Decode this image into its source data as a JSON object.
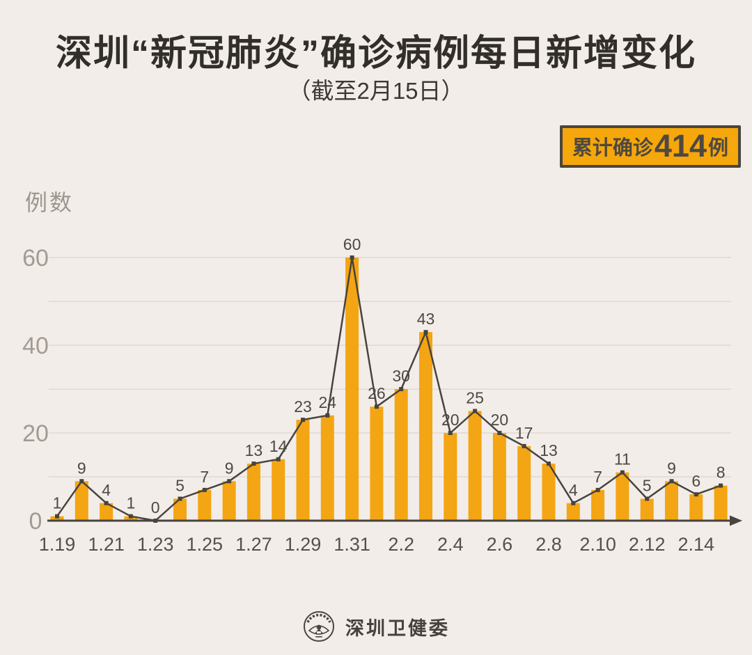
{
  "header": {
    "title": "深圳“新冠肺炎”确诊病例每日新增变化",
    "subtitle": "（截至2月15日）"
  },
  "badge": {
    "prefix": "累计确诊",
    "value": "414",
    "suffix": "例",
    "bg_color": "#F5A70B",
    "border_color": "#4A453E",
    "text_color": "#4E4840"
  },
  "chart_data": {
    "type": "bar",
    "overlay": "line",
    "title": "深圳“新冠肺炎”确诊病例每日新增变化（截至2月15日）",
    "ylabel": "例数",
    "xlabel": "",
    "x": [
      "1.19",
      "1.20",
      "1.21",
      "1.22",
      "1.23",
      "1.24",
      "1.25",
      "1.26",
      "1.27",
      "1.28",
      "1.29",
      "1.30",
      "1.31",
      "2.1",
      "2.2",
      "2.3",
      "2.4",
      "2.5",
      "2.6",
      "2.7",
      "2.8",
      "2.9",
      "2.10",
      "2.11",
      "2.12",
      "2.13",
      "2.14",
      "2.15"
    ],
    "values": [
      1,
      9,
      4,
      1,
      0,
      5,
      7,
      9,
      13,
      14,
      23,
      24,
      60,
      26,
      30,
      43,
      20,
      25,
      20,
      17,
      13,
      4,
      7,
      11,
      5,
      9,
      6,
      8
    ],
    "x_tick_labels_shown": [
      "1.19",
      "1.21",
      "1.23",
      "1.25",
      "1.27",
      "1.29",
      "1.31",
      "2.2",
      "2.4",
      "2.6",
      "2.8",
      "2.10",
      "2.12",
      "2.14"
    ],
    "label_every": 2,
    "y_ticks_labeled": [
      0,
      20,
      40,
      60
    ],
    "grid_step": 10,
    "ylim": [
      0,
      60
    ],
    "grid": "horizontal",
    "legend": "none",
    "data_labels": "above each bar",
    "total": 414,
    "bar_color": "#F4A513",
    "line_color": "#47433D",
    "grid_color": "#DFD9D2",
    "axis_color": "#47433D",
    "tick_label_color": "#55504A",
    "y_label_color": "#A39B93",
    "data_label_color": "#4D4843"
  },
  "footer": {
    "name": "深圳卫健委",
    "logo": "szhc-seal-logo"
  }
}
